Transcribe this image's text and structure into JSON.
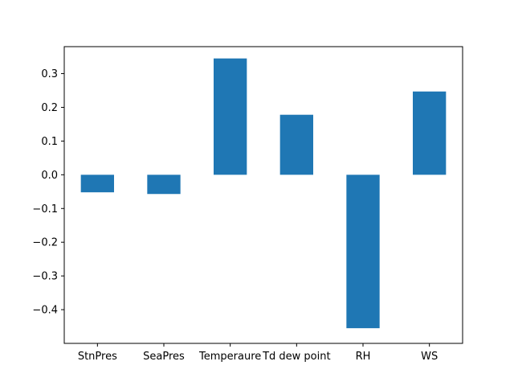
{
  "chart_data": {
    "type": "bar",
    "categories": [
      "StnPres",
      "SeaPres",
      "Temperaure",
      "Td dew point",
      "RH",
      "WS"
    ],
    "values": [
      -0.052,
      -0.057,
      0.345,
      0.178,
      -0.455,
      0.247
    ],
    "ylim": [
      -0.5,
      0.38
    ],
    "yticks": [
      -0.4,
      -0.3,
      -0.2,
      -0.1,
      0.0,
      0.1,
      0.2,
      0.3
    ],
    "ytick_labels": [
      "−0.4",
      "−0.3",
      "−0.2",
      "−0.1",
      "0.0",
      "0.1",
      "0.2",
      "0.3"
    ],
    "bar_color": "#1f77b4",
    "title": "",
    "xlabel": "",
    "ylabel": "",
    "grid": false,
    "legend": false
  }
}
